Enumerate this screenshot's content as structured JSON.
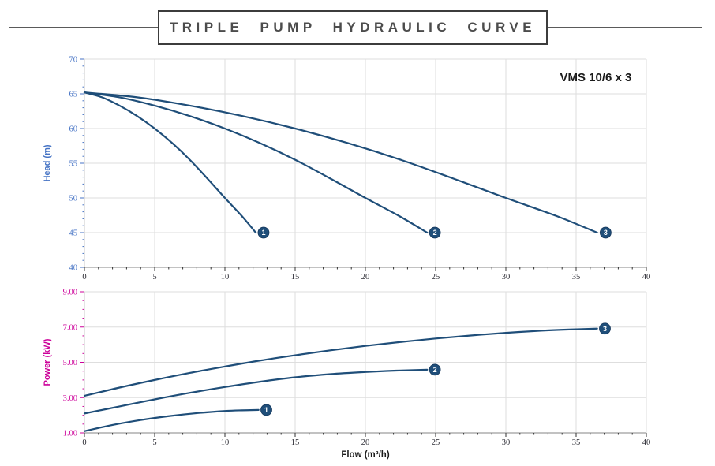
{
  "header": {
    "title": "TRIPLE PUMP HYDRAULIC CURVE"
  },
  "colors": {
    "curve": "#1f4e79",
    "marker_fill": "#1f4e79",
    "grid": "#dedede",
    "x_axis_line": "#9e9e9e",
    "y_axis_line": "#c9c9c9",
    "x_tick": "#333333",
    "x_tick_label": "#2b2b33",
    "head_axis": "#4472c4",
    "power_axis": "#cc0099",
    "title_text": "#4c4c4c",
    "box_border": "#3c3c3c"
  },
  "chart_data": [
    {
      "id": "head-chart",
      "type": "line",
      "title": "",
      "xlabel": "",
      "ylabel": "Head (m)",
      "xlim": [
        0,
        40
      ],
      "ylim": [
        40,
        70
      ],
      "x_major_step": 5,
      "x_minor_step": 1,
      "y_major_step": 5,
      "y_minor_step": 1,
      "y_tick_decimals": 0,
      "grid": true,
      "axis_color": "#4472c4",
      "annotation": {
        "text": "VMS 10/6 x 3",
        "x": 36.4,
        "y": 66.8
      },
      "series": [
        {
          "name": "1",
          "points": [
            [
              0,
              65.2
            ],
            [
              1.25,
              64.5
            ],
            [
              2.5,
              63.3
            ],
            [
              3.75,
              61.8
            ],
            [
              5,
              60
            ],
            [
              6.25,
              57.9
            ],
            [
              7.5,
              55.5
            ],
            [
              8.75,
              52.8
            ],
            [
              10,
              50
            ],
            [
              11.2,
              47.4
            ],
            [
              12.2,
              45
            ]
          ],
          "marker": [
            12.75,
            45
          ]
        },
        {
          "name": "2",
          "points": [
            [
              0,
              65.2
            ],
            [
              2.5,
              64.5
            ],
            [
              5,
              63.3
            ],
            [
              7.5,
              61.8
            ],
            [
              10,
              60
            ],
            [
              12.5,
              57.9
            ],
            [
              15,
              55.5
            ],
            [
              17.5,
              52.8
            ],
            [
              20,
              50
            ],
            [
              22.4,
              47.4
            ],
            [
              24.4,
              45
            ]
          ],
          "marker": [
            24.95,
            45
          ]
        },
        {
          "name": "3",
          "points": [
            [
              0,
              65.2
            ],
            [
              3.75,
              64.5
            ],
            [
              7.5,
              63.3
            ],
            [
              11.25,
              61.8
            ],
            [
              15,
              60
            ],
            [
              18.75,
              57.9
            ],
            [
              22.5,
              55.5
            ],
            [
              26.25,
              52.8
            ],
            [
              30,
              50
            ],
            [
              33.6,
              47.4
            ],
            [
              36.5,
              45
            ]
          ],
          "marker": [
            37.1,
            45
          ]
        }
      ]
    },
    {
      "id": "power-chart",
      "type": "line",
      "title": "",
      "xlabel": "Flow (m³/h)",
      "ylabel": "Power (kW)",
      "xlim": [
        0,
        40
      ],
      "ylim": [
        1,
        9
      ],
      "x_major_step": 5,
      "x_minor_step": 1,
      "y_major_step": 2,
      "y_minor_step": 0.5,
      "y_tick_decimals": 2,
      "grid": true,
      "axis_color": "#cc0099",
      "series": [
        {
          "name": "1",
          "points": [
            [
              0,
              1.1
            ],
            [
              2,
              1.45
            ],
            [
              4,
              1.73
            ],
            [
              6,
              1.95
            ],
            [
              8,
              2.12
            ],
            [
              10,
              2.24
            ],
            [
              11.2,
              2.28
            ],
            [
              12.4,
              2.3
            ]
          ],
          "marker": [
            12.95,
            2.3
          ]
        },
        {
          "name": "2",
          "points": [
            [
              0,
              2.1
            ],
            [
              2.5,
              2.5
            ],
            [
              5,
              2.9
            ],
            [
              7.5,
              3.27
            ],
            [
              10,
              3.6
            ],
            [
              12.5,
              3.9
            ],
            [
              15,
              4.15
            ],
            [
              17.5,
              4.33
            ],
            [
              20,
              4.45
            ],
            [
              22.2,
              4.53
            ],
            [
              24.4,
              4.58
            ]
          ],
          "marker": [
            24.95,
            4.58
          ]
        },
        {
          "name": "3",
          "points": [
            [
              0,
              3.1
            ],
            [
              2.5,
              3.57
            ],
            [
              5,
              4.0
            ],
            [
              7.5,
              4.4
            ],
            [
              10,
              4.76
            ],
            [
              12.5,
              5.1
            ],
            [
              15,
              5.4
            ],
            [
              17.5,
              5.68
            ],
            [
              20,
              5.93
            ],
            [
              22.5,
              6.15
            ],
            [
              25,
              6.35
            ],
            [
              27.5,
              6.52
            ],
            [
              30,
              6.67
            ],
            [
              32.5,
              6.79
            ],
            [
              34.5,
              6.86
            ],
            [
              36.5,
              6.91
            ]
          ],
          "marker": [
            37.05,
            6.91
          ]
        }
      ]
    }
  ]
}
